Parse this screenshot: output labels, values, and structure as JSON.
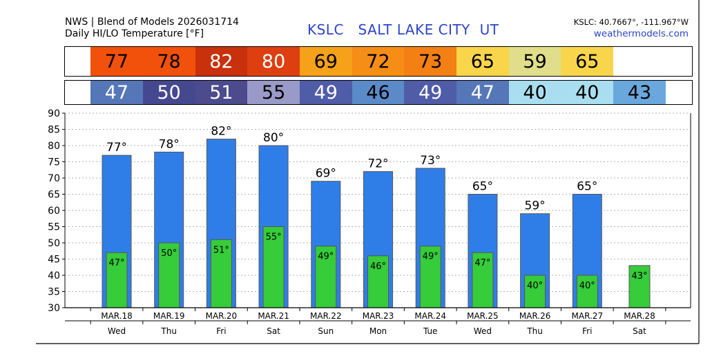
{
  "header": {
    "source": "NWS | Blend of Models 2026031714",
    "subtitle": "Daily HI/LO Temperature [°F]",
    "station": "KSLC   SALT LAKE CITY  UT",
    "coords": "KSLC: 40.7667°, -111.967°W",
    "site": "weathermodels.com"
  },
  "colors": {
    "hi_bar": "#2f7ee8",
    "lo_bar": "#36cc3a",
    "grid": "#999999",
    "station_text": "#2b45c9"
  },
  "strips": {
    "hi": [
      {
        "v": "77",
        "bg": "#f2510c",
        "fg": "#000000"
      },
      {
        "v": "78",
        "bg": "#f2510c",
        "fg": "#000000"
      },
      {
        "v": "82",
        "bg": "#c8310b",
        "fg": "#ffffff"
      },
      {
        "v": "80",
        "bg": "#dd3f10",
        "fg": "#ffffff"
      },
      {
        "v": "69",
        "bg": "#f5a11a",
        "fg": "#000000"
      },
      {
        "v": "72",
        "bg": "#f58d16",
        "fg": "#000000"
      },
      {
        "v": "73",
        "bg": "#f47f14",
        "fg": "#000000"
      },
      {
        "v": "65",
        "bg": "#f8d54b",
        "fg": "#000000"
      },
      {
        "v": "59",
        "bg": "#e0de8a",
        "fg": "#000000"
      },
      {
        "v": "65",
        "bg": "#f8d54b",
        "fg": "#000000"
      }
    ],
    "lo": [
      {
        "v": "47",
        "bg": "#5577b8",
        "fg": "#ffffff"
      },
      {
        "v": "50",
        "bg": "#46488f",
        "fg": "#ffffff"
      },
      {
        "v": "51",
        "bg": "#4b4b8e",
        "fg": "#ffffff"
      },
      {
        "v": "55",
        "bg": "#9a9ac8",
        "fg": "#000000"
      },
      {
        "v": "49",
        "bg": "#4f5ca8",
        "fg": "#ffffff"
      },
      {
        "v": "46",
        "bg": "#5b8ac9",
        "fg": "#000000"
      },
      {
        "v": "49",
        "bg": "#4f5ca8",
        "fg": "#ffffff"
      },
      {
        "v": "47",
        "bg": "#5577b8",
        "fg": "#ffffff"
      },
      {
        "v": "40",
        "bg": "#a9def0",
        "fg": "#000000"
      },
      {
        "v": "40",
        "bg": "#a9def0",
        "fg": "#000000"
      },
      {
        "v": "43",
        "bg": "#6aa7dd",
        "fg": "#000000"
      }
    ]
  },
  "chart_data": {
    "type": "bar",
    "categories": [
      "MAR.18",
      "MAR.19",
      "MAR.20",
      "MAR.21",
      "MAR.22",
      "MAR.23",
      "MAR.24",
      "MAR.25",
      "MAR.26",
      "MAR.27",
      "MAR.28"
    ],
    "weekdays": [
      "Wed",
      "Thu",
      "Fri",
      "Sat",
      "Sun",
      "Mon",
      "Tue",
      "Wed",
      "Thu",
      "Fri",
      "Sat"
    ],
    "series": [
      {
        "values": [
          77,
          78,
          82,
          80,
          69,
          72,
          73,
          65,
          59,
          65,
          null
        ]
      },
      {
        "values": [
          47,
          50,
          51,
          55,
          49,
          46,
          49,
          47,
          40,
          40,
          43
        ]
      }
    ],
    "hi_labels": [
      "77°",
      "78°",
      "82°",
      "80°",
      "69°",
      "72°",
      "73°",
      "65°",
      "59°",
      "65°",
      ""
    ],
    "lo_labels": [
      "47°",
      "50°",
      "51°",
      "55°",
      "49°",
      "46°",
      "49°",
      "47°",
      "40°",
      "40°",
      "43°"
    ],
    "yticks": [
      "30",
      "35",
      "40",
      "45",
      "50",
      "55",
      "60",
      "65",
      "70",
      "75",
      "80",
      "85",
      "90"
    ],
    "ylim": [
      30,
      90
    ],
    "grid": true
  }
}
